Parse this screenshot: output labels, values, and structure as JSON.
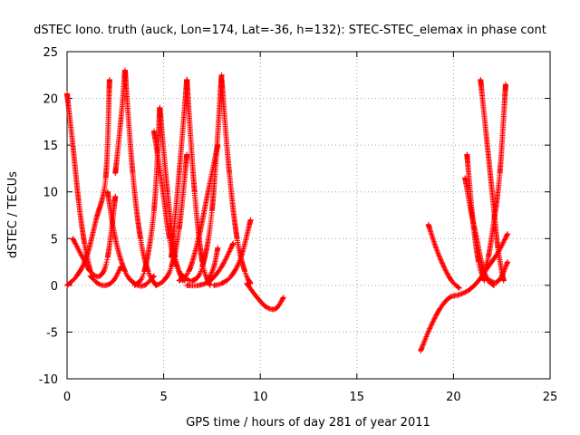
{
  "chart_data": {
    "type": "scatter",
    "title": "dSTEC Iono. truth (auck, Lon=174, Lat=-36, h=132): STEC-STEC_elemax in phase cont",
    "xlabel": "GPS time / hours of day 281 of year 2011",
    "ylabel": "dSTEC  / TECUs",
    "xlim": [
      0,
      25
    ],
    "ylim": [
      -10,
      25
    ],
    "xticks": [
      0,
      5,
      10,
      15,
      20,
      25
    ],
    "yticks": [
      -10,
      -5,
      0,
      5,
      10,
      15,
      20,
      25
    ],
    "grid": true,
    "marker": "plus",
    "color": "#ff0000",
    "series": [
      {
        "x": [
          0.0,
          0.3,
          0.6,
          0.9,
          1.2
        ],
        "y": [
          20.5,
          15.0,
          9.0,
          4.5,
          1.5
        ]
      },
      {
        "x": [
          1.2,
          1.6,
          2.0,
          2.4,
          2.8
        ],
        "y": [
          1.0,
          0.2,
          0.0,
          0.5,
          2.0
        ]
      },
      {
        "x": [
          0.0,
          0.5,
          1.0,
          1.5,
          2.0,
          2.2
        ],
        "y": [
          0.0,
          1.0,
          3.0,
          7.0,
          11.5,
          22.0
        ]
      },
      {
        "x": [
          0.3,
          0.8,
          1.2,
          1.7,
          2.1,
          2.5
        ],
        "y": [
          5.0,
          3.0,
          1.5,
          1.0,
          3.0,
          9.5
        ]
      },
      {
        "x": [
          2.5,
          2.8,
          3.0
        ],
        "y": [
          12.0,
          18.0,
          23.0
        ]
      },
      {
        "x": [
          3.0,
          3.4,
          3.8,
          4.2,
          4.6
        ],
        "y": [
          23.0,
          12.0,
          5.0,
          1.5,
          0.0
        ]
      },
      {
        "x": [
          2.1,
          2.5,
          3.0,
          3.5,
          4.0,
          4.5
        ],
        "y": [
          10.0,
          5.0,
          1.5,
          0.2,
          0.0,
          1.0
        ]
      },
      {
        "x": [
          3.5,
          4.0,
          4.5,
          4.8
        ],
        "y": [
          0.0,
          1.5,
          8.0,
          19.0
        ]
      },
      {
        "x": [
          4.8,
          5.2,
          5.6,
          6.0
        ],
        "y": [
          19.0,
          10.0,
          3.0,
          0.5
        ]
      },
      {
        "x": [
          4.5,
          4.9,
          5.3,
          5.7,
          6.1
        ],
        "y": [
          16.5,
          11.0,
          5.0,
          2.0,
          0.5
        ]
      },
      {
        "x": [
          4.6,
          5.0,
          5.4,
          5.8,
          6.2
        ],
        "y": [
          0.0,
          0.5,
          2.0,
          6.0,
          14.0
        ]
      },
      {
        "x": [
          5.4,
          5.8,
          6.2
        ],
        "y": [
          3.0,
          12.0,
          22.0
        ]
      },
      {
        "x": [
          6.2,
          6.6,
          7.0,
          7.4
        ],
        "y": [
          22.0,
          10.0,
          2.5,
          0.0
        ]
      },
      {
        "x": [
          6.0,
          6.5,
          7.0,
          7.5,
          8.0
        ],
        "y": [
          1.0,
          0.5,
          2.0,
          8.0,
          22.5
        ]
      },
      {
        "x": [
          5.8,
          6.3,
          6.8,
          7.3,
          7.8
        ],
        "y": [
          0.5,
          1.5,
          5.0,
          10.0,
          15.0
        ]
      },
      {
        "x": [
          6.2,
          6.8,
          7.4,
          8.0,
          8.6
        ],
        "y": [
          0.0,
          0.0,
          0.5,
          2.0,
          4.5
        ]
      },
      {
        "x": [
          7.3,
          7.6,
          7.8
        ],
        "y": [
          0.5,
          2.0,
          4.0
        ]
      },
      {
        "x": [
          8.0,
          8.4,
          8.8,
          9.2,
          9.5
        ],
        "y": [
          22.0,
          12.0,
          5.0,
          1.5,
          0.2
        ]
      },
      {
        "x": [
          7.6,
          8.0,
          8.5,
          9.0,
          9.5
        ],
        "y": [
          0.0,
          0.2,
          1.0,
          3.0,
          7.0
        ]
      },
      {
        "x": [
          9.3,
          9.8,
          10.3,
          10.8,
          11.2
        ],
        "y": [
          0.2,
          -1.2,
          -2.3,
          -2.5,
          -1.3
        ]
      },
      {
        "x": [
          18.3,
          18.8,
          19.3,
          19.8,
          20.3,
          20.8,
          21.3,
          21.8,
          22.3,
          22.8
        ],
        "y": [
          -7.0,
          -4.5,
          -2.5,
          -1.3,
          -1.0,
          -0.5,
          0.5,
          2.0,
          3.5,
          5.5
        ]
      },
      {
        "x": [
          18.7,
          19.1,
          19.5,
          19.9,
          20.3
        ],
        "y": [
          6.5,
          4.0,
          2.0,
          0.5,
          -0.3
        ]
      },
      {
        "x": [
          20.7,
          21.0,
          21.3,
          21.6
        ],
        "y": [
          14.0,
          7.0,
          2.5,
          0.5
        ]
      },
      {
        "x": [
          20.6,
          20.9,
          21.2,
          21.5,
          21.8,
          22.1
        ],
        "y": [
          11.5,
          8.0,
          5.0,
          2.0,
          0.5,
          0.0
        ]
      },
      {
        "x": [
          21.4,
          21.7,
          22.0,
          22.3,
          22.6
        ],
        "y": [
          22.0,
          16.0,
          10.0,
          4.0,
          0.5
        ]
      },
      {
        "x": [
          21.5,
          21.8,
          22.1,
          22.4,
          22.7
        ],
        "y": [
          1.0,
          3.0,
          7.0,
          12.0,
          21.5
        ]
      },
      {
        "x": [
          21.9,
          22.2,
          22.5,
          22.8
        ],
        "y": [
          0.5,
          0.3,
          1.0,
          2.5
        ]
      }
    ]
  }
}
